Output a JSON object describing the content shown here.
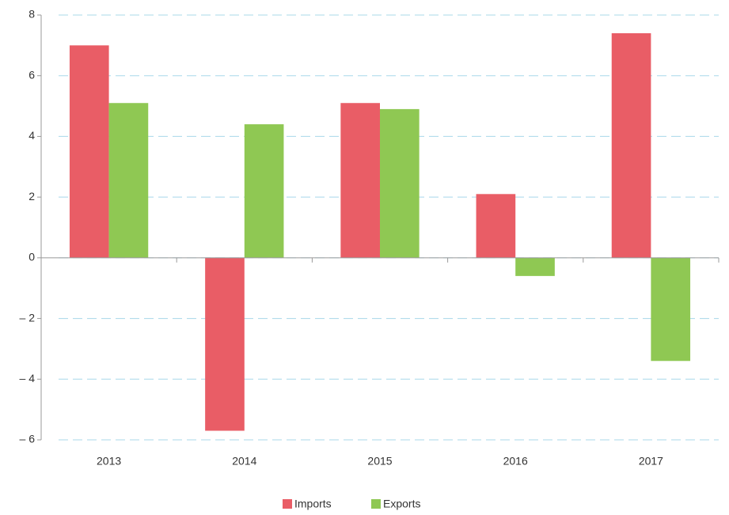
{
  "chart_data": {
    "type": "bar",
    "categories": [
      "2013",
      "2014",
      "2015",
      "2016",
      "2017"
    ],
    "series": [
      {
        "name": "Imports",
        "color": "#e95d66",
        "values": [
          7.0,
          -5.7,
          5.1,
          2.1,
          7.4
        ]
      },
      {
        "name": "Exports",
        "color": "#8fc853",
        "values": [
          5.1,
          4.4,
          4.9,
          -0.6,
          -3.4
        ]
      }
    ],
    "ylim": [
      -6,
      8
    ],
    "yticks": [
      {
        "value": -6,
        "label": "– 6"
      },
      {
        "value": -4,
        "label": "– 4"
      },
      {
        "value": -2,
        "label": "– 2"
      },
      0,
      2,
      4,
      6,
      8
    ],
    "grid": true,
    "legend": "bottom"
  }
}
